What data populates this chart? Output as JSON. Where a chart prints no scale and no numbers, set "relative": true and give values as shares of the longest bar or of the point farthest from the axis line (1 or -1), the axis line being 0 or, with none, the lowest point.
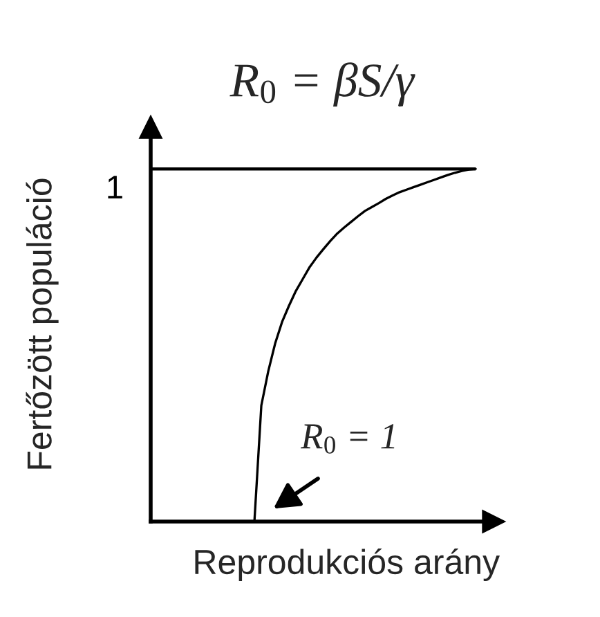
{
  "chart_data": {
    "type": "line",
    "title": "R$_{0}$ = βS/γ",
    "xlabel": "Reprodukciós arány",
    "ylabel": "Fertőzött populáció",
    "relative": true,
    "categories": [
      null,
      null,
      null,
      null,
      null,
      null,
      null,
      null,
      null,
      null,
      null,
      null,
      null,
      null,
      null,
      null,
      null,
      null,
      null,
      null,
      null,
      null,
      null,
      null,
      null,
      null,
      null,
      null,
      null,
      null,
      null,
      null,
      null,
      null,
      null,
      null,
      null,
      null,
      null,
      null,
      null,
      null,
      null,
      null,
      null,
      null,
      null,
      null
    ],
    "series": [
      {
        "color": "#000000",
        "values": [
          null,
          null,
          null,
          null,
          null,
          null,
          null,
          null,
          null,
          null,
          null,
          null,
          null,
          null,
          null,
          0,
          0.329,
          0.426,
          0.505,
          0.566,
          0.612,
          0.654,
          0.688,
          0.722,
          0.749,
          0.773,
          0.796,
          0.817,
          0.834,
          0.85,
          0.866,
          0.881,
          0.892,
          0.903,
          0.915,
          0.925,
          0.934,
          0.941,
          0.948,
          0.955,
          0.962,
          0.969,
          0.976,
          0.983,
          0.989,
          0.994,
          0.998,
          1.0
        ]
      }
    ],
    "ref_lines": [
      {
        "axis": "y",
        "value": 1,
        "label": "1",
        "color": "#000000"
      }
    ],
    "annotations": [
      "R$_{0}$ = 1"
    ],
    "legend": false,
    "marker": "none",
    "line_style": "solid"
  }
}
